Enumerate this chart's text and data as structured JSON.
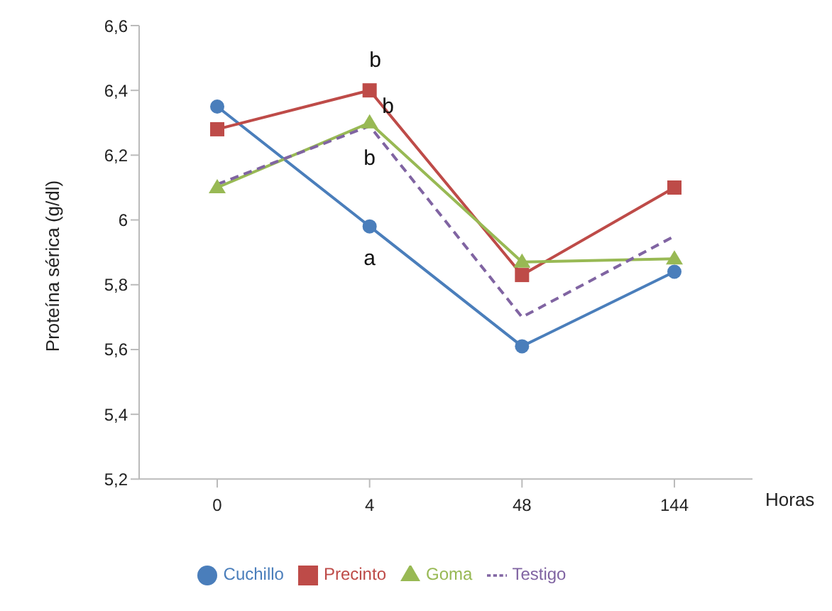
{
  "chart_data": {
    "type": "line",
    "ylabel": "Proteína sérica (g/dl)",
    "xlabel": "Horas",
    "categories": [
      "0",
      "4",
      "48",
      "144"
    ],
    "series": [
      {
        "name": "Cuchillo",
        "color": "#4a7ebb",
        "values": [
          6.35,
          5.98,
          5.61,
          5.84
        ],
        "marker": "circle",
        "line_style": "solid"
      },
      {
        "name": "Precinto",
        "color": "#be4b48",
        "values": [
          6.28,
          6.4,
          5.83,
          6.1
        ],
        "marker": "square",
        "line_style": "solid"
      },
      {
        "name": "Goma",
        "color": "#98b954",
        "values": [
          6.1,
          6.3,
          5.87,
          5.88
        ],
        "marker": "triangle",
        "line_style": "solid"
      },
      {
        "name": "Testigo",
        "color": "#8064a2",
        "values": [
          6.11,
          6.29,
          5.7,
          5.95
        ],
        "marker": "none",
        "line_style": "dashed"
      }
    ],
    "ylim": [
      5.2,
      6.6
    ],
    "yticks": [
      {
        "value": 5.2,
        "label": "5,2"
      },
      {
        "value": 5.4,
        "label": "5,4"
      },
      {
        "value": 5.6,
        "label": "5,6"
      },
      {
        "value": 5.8,
        "label": "5,8"
      },
      6,
      {
        "value": 6.2,
        "label": "6,2"
      },
      {
        "value": 6.4,
        "label": "6,4"
      },
      {
        "value": 6.6,
        "label": "6,6"
      }
    ],
    "grid": false,
    "legend": "bottom",
    "annotations": [
      {
        "text": "b",
        "x": "4",
        "y": 6.4
      },
      {
        "text": "b",
        "x": "4",
        "y": 6.3
      },
      {
        "text": "b",
        "x": "4",
        "y": 6.29
      },
      {
        "text": "a",
        "x": "4",
        "y": 5.98
      }
    ]
  }
}
